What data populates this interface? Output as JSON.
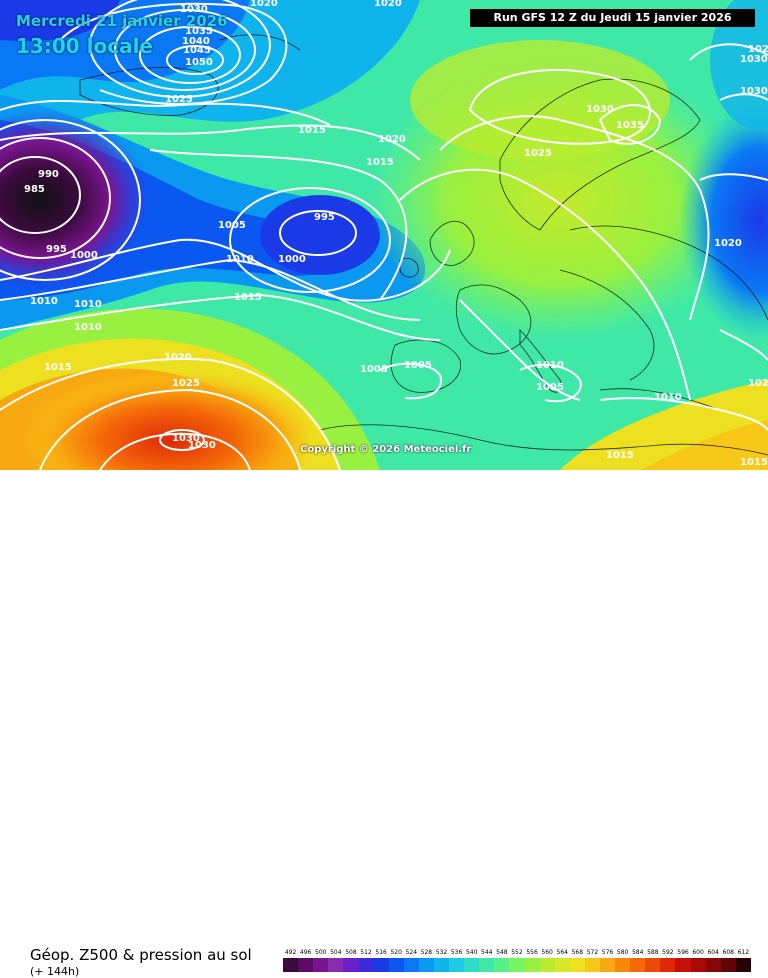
{
  "header": {
    "date_label": "Mercredi 21 janvier 2026",
    "hour_label": "13:00 locale",
    "run_label": "Run GFS 12 Z du Jeudi 15 janvier 2026"
  },
  "copyright": "Copyright © 2026 Meteociel.fr",
  "legend": {
    "title": "Géop. Z500 & pression au sol",
    "subtitle": "(+ 144h)",
    "scale_values": [
      "492",
      "496",
      "500",
      "504",
      "508",
      "512",
      "516",
      "520",
      "524",
      "528",
      "532",
      "536",
      "540",
      "544",
      "548",
      "552",
      "556",
      "560",
      "564",
      "568",
      "572",
      "576",
      "580",
      "584",
      "588",
      "592",
      "596",
      "600",
      "604",
      "608",
      "612"
    ],
    "scale_colors": [
      "#3a0a3c",
      "#5c0b66",
      "#7a1590",
      "#8a2ab0",
      "#6a20c8",
      "#3a2ad8",
      "#1a3ae8",
      "#0a58f0",
      "#0a78f4",
      "#0a98f0",
      "#10b4ec",
      "#20cce4",
      "#30dcc8",
      "#40e8a8",
      "#58f088",
      "#78f460",
      "#98f040",
      "#b8ec30",
      "#d4e828",
      "#ece020",
      "#f8c818",
      "#f8a810",
      "#f88808",
      "#f46808",
      "#ec4808",
      "#e02808",
      "#c81008",
      "#a80808",
      "#880606",
      "#600404",
      "#280202"
    ]
  },
  "isobars": [
    {
      "label": "1030",
      "type": "pressure"
    },
    {
      "label": "1035",
      "type": "pressure"
    },
    {
      "label": "1040",
      "type": "pressure"
    },
    {
      "label": "1045",
      "type": "pressure"
    },
    {
      "label": "1050",
      "type": "pressure"
    },
    {
      "label": "1025",
      "type": "pressure"
    },
    {
      "label": "1020",
      "type": "pressure"
    },
    {
      "label": "1020",
      "type": "pressure"
    },
    {
      "label": "1015",
      "type": "pressure"
    },
    {
      "label": "1015",
      "type": "pressure"
    },
    {
      "label": "1020",
      "type": "pressure"
    },
    {
      "label": "990",
      "type": "pressure"
    },
    {
      "label": "985",
      "type": "pressure"
    },
    {
      "label": "995",
      "type": "pressure"
    },
    {
      "label": "1000",
      "type": "pressure"
    },
    {
      "label": "1005",
      "type": "pressure"
    },
    {
      "label": "995",
      "type": "pressure"
    },
    {
      "label": "1000",
      "type": "pressure"
    },
    {
      "label": "1010",
      "type": "pressure"
    },
    {
      "label": "1010",
      "type": "pressure"
    },
    {
      "label": "1010",
      "type": "pressure"
    },
    {
      "label": "1015",
      "type": "pressure"
    },
    {
      "label": "1010",
      "type": "pressure"
    },
    {
      "label": "1015",
      "type": "pressure"
    },
    {
      "label": "1020",
      "type": "pressure"
    },
    {
      "label": "1025",
      "type": "pressure"
    },
    {
      "label": "1030",
      "type": "pressure"
    },
    {
      "label": "1030",
      "type": "pressure"
    },
    {
      "label": "1005",
      "type": "pressure"
    },
    {
      "label": "1005",
      "type": "pressure"
    },
    {
      "label": "1010",
      "type": "pressure"
    },
    {
      "label": "1005",
      "type": "pressure"
    },
    {
      "label": "1010",
      "type": "pressure"
    },
    {
      "label": "1015",
      "type": "pressure"
    },
    {
      "label": "1015",
      "type": "pressure"
    },
    {
      "label": "1025",
      "type": "pressure"
    },
    {
      "label": "1030",
      "type": "pressure"
    },
    {
      "label": "1035",
      "type": "pressure"
    },
    {
      "label": "1030",
      "type": "pressure"
    },
    {
      "label": "1030",
      "type": "pressure"
    },
    {
      "label": "1020",
      "type": "pressure"
    },
    {
      "label": "1025",
      "type": "pressure"
    },
    {
      "label": "1020",
      "type": "pressure"
    }
  ]
}
